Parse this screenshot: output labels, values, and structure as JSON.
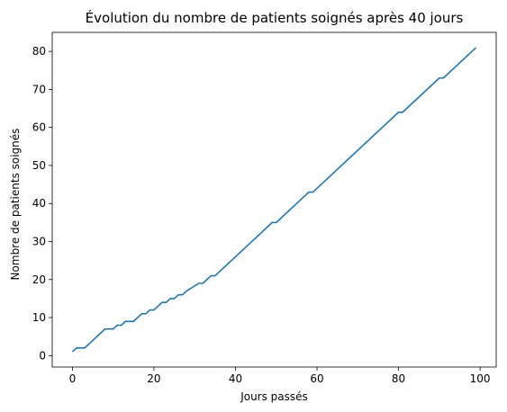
{
  "chart_data": {
    "type": "line",
    "title": "Évolution du nombre de patients soignés après 40 jours",
    "xlabel": "Jours passés",
    "ylabel": "Nombre de patients soignés",
    "xlim": [
      -4.95,
      103.95
    ],
    "ylim": [
      -3.0,
      85.0
    ],
    "xticks": [
      0,
      20,
      40,
      60,
      80,
      100
    ],
    "yticks": [
      0,
      10,
      20,
      30,
      40,
      50,
      60,
      70,
      80
    ],
    "grid": false,
    "legend": "none",
    "colors": {
      "line": "#1f77b4",
      "axes": "#000000",
      "background": "#ffffff"
    },
    "series": [
      {
        "x": [
          0,
          1,
          3,
          8,
          10,
          11,
          12,
          13,
          15,
          17,
          18,
          19,
          20,
          22,
          23,
          24,
          25,
          26,
          27,
          28,
          31,
          32,
          34,
          35,
          49,
          50,
          58,
          59,
          80,
          81,
          90,
          91,
          99
        ],
        "values": [
          1,
          2,
          2,
          7,
          7,
          8,
          8,
          9,
          9,
          11,
          11,
          12,
          12,
          14,
          14,
          15,
          15,
          16,
          16,
          17,
          19,
          19,
          21,
          21,
          35,
          35,
          43,
          43,
          64,
          64,
          73,
          73,
          81
        ]
      }
    ]
  }
}
